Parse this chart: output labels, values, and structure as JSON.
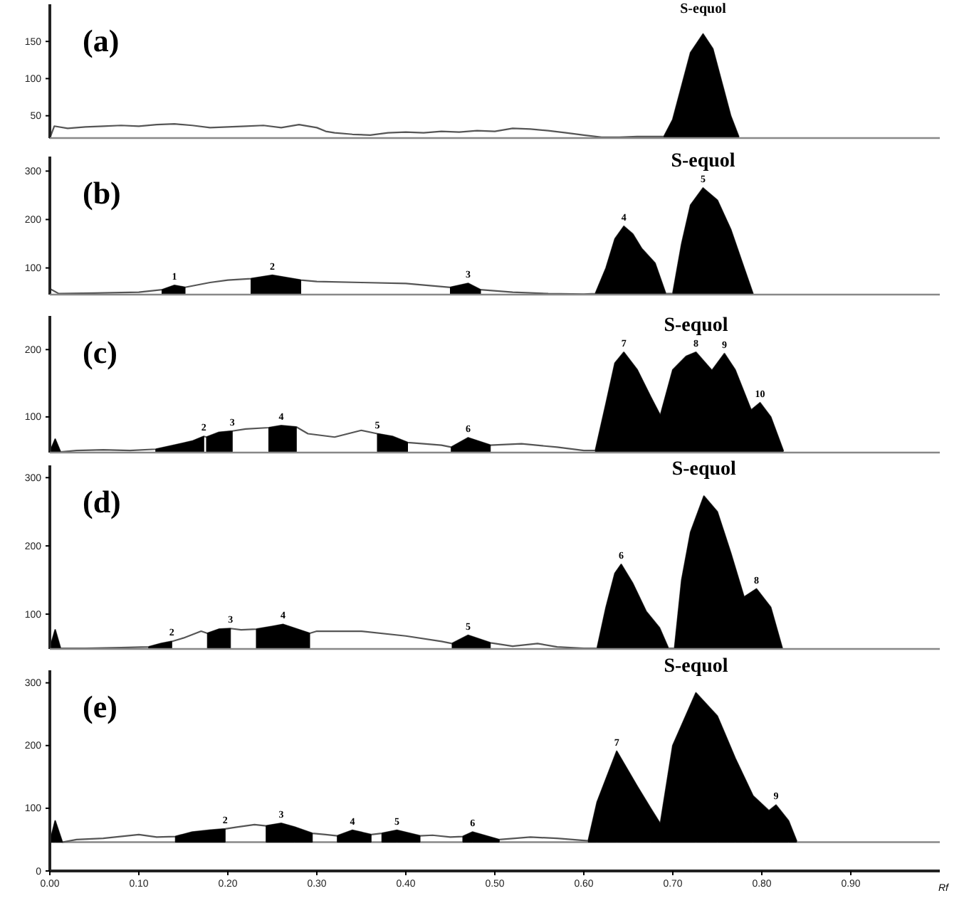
{
  "chart_data": [
    {
      "type": "line",
      "title": "(a)",
      "xlim": [
        0,
        1
      ],
      "ylim": [
        20,
        200
      ],
      "yticks": [
        50,
        100,
        150
      ],
      "tick_labels": "y",
      "series": [
        {
          "type": "line",
          "color": "#555555",
          "x": [
            0,
            0.005,
            0.02,
            0.04,
            0.06,
            0.08,
            0.1,
            0.12,
            0.14,
            0.16,
            0.18,
            0.2,
            0.22,
            0.24,
            0.26,
            0.28,
            0.3,
            0.31,
            0.32,
            0.34,
            0.36,
            0.38,
            0.4,
            0.42,
            0.44,
            0.46,
            0.48,
            0.5,
            0.52,
            0.54,
            0.56,
            0.58,
            0.6,
            0.62,
            0.64,
            0.66,
            0.69,
            0.7,
            0.71,
            0.72,
            0.734,
            0.745,
            0.755,
            0.765,
            0.774
          ],
          "values": [
            20,
            36,
            33,
            35,
            36,
            37,
            36,
            38,
            39,
            37,
            34,
            35,
            36,
            37,
            34,
            38,
            34,
            29,
            27,
            25,
            24,
            27,
            28,
            27,
            29,
            28,
            30,
            29,
            33,
            32,
            30,
            27,
            24,
            21,
            21,
            22,
            22,
            45,
            90,
            135,
            160,
            140,
            95,
            50,
            22
          ]
        },
        {
          "type": "area",
          "color": "#000000",
          "x": [
            0.69,
            0.7,
            0.71,
            0.72,
            0.734,
            0.745,
            0.755,
            0.765,
            0.774
          ],
          "values": [
            22,
            45,
            90,
            135,
            160,
            140,
            95,
            50,
            22
          ]
        }
      ],
      "annotations": [
        {
          "text": "S-equol",
          "x": 0.734,
          "y": 160
        }
      ]
    },
    {
      "type": "line",
      "title": "(b)",
      "xlim": [
        0,
        1
      ],
      "ylim": [
        45,
        330
      ],
      "yticks": [
        100,
        200,
        300
      ],
      "tick_labels": "y",
      "series": [
        {
          "type": "line",
          "color": "#555555",
          "x": [
            0,
            0.01,
            0.05,
            0.1,
            0.126,
            0.14,
            0.152,
            0.18,
            0.2,
            0.226,
            0.25,
            0.282,
            0.3,
            0.35,
            0.4,
            0.45,
            0.47,
            0.484,
            0.52,
            0.56,
            0.6,
            0.613,
            0.625,
            0.635,
            0.645,
            0.655,
            0.665,
            0.68,
            0.692,
            0.7,
            0.71,
            0.72,
            0.734,
            0.75,
            0.765,
            0.78,
            0.79
          ],
          "values": [
            57,
            47,
            48,
            50,
            55,
            64,
            60,
            70,
            75,
            78,
            85,
            75,
            72,
            70,
            68,
            60,
            68,
            55,
            50,
            47,
            46,
            47,
            100,
            160,
            186,
            170,
            140,
            110,
            47,
            47,
            150,
            230,
            265,
            240,
            180,
            100,
            47
          ]
        },
        {
          "type": "area",
          "color": "#000000",
          "x": [
            0.126,
            0.14,
            0.152
          ],
          "values": [
            55,
            64,
            60
          ]
        },
        {
          "type": "area",
          "color": "#000000",
          "x": [
            0.226,
            0.25,
            0.282
          ],
          "values": [
            78,
            85,
            75
          ]
        },
        {
          "type": "area",
          "color": "#000000",
          "x": [
            0.45,
            0.47,
            0.484
          ],
          "values": [
            60,
            68,
            55
          ]
        },
        {
          "type": "area",
          "color": "#000000",
          "x": [
            0.613,
            0.625,
            0.635,
            0.645,
            0.655,
            0.665,
            0.68,
            0.692
          ],
          "values": [
            47,
            100,
            160,
            186,
            170,
            140,
            110,
            47
          ]
        },
        {
          "type": "area",
          "color": "#000000",
          "x": [
            0.7,
            0.71,
            0.72,
            0.734,
            0.75,
            0.765,
            0.78,
            0.79
          ],
          "values": [
            47,
            150,
            230,
            265,
            240,
            180,
            100,
            47
          ]
        }
      ],
      "annotations": [
        {
          "text": "1",
          "x": 0.14,
          "y": 64
        },
        {
          "text": "2",
          "x": 0.25,
          "y": 85
        },
        {
          "text": "3",
          "x": 0.47,
          "y": 68
        },
        {
          "text": "4",
          "x": 0.645,
          "y": 186
        },
        {
          "text": "5",
          "x": 0.734,
          "y": 265
        },
        {
          "text": "S-equol",
          "x": 0.734,
          "y": 265
        }
      ]
    },
    {
      "type": "line",
      "title": "(c)",
      "xlim": [
        0,
        1
      ],
      "ylim": [
        47,
        250
      ],
      "yticks": [
        100,
        200
      ],
      "tick_labels": "y",
      "series": [
        {
          "type": "line",
          "color": "#555555",
          "x": [
            0,
            0.006,
            0.012,
            0.03,
            0.06,
            0.09,
            0.119,
            0.14,
            0.16,
            0.173,
            0.176,
            0.19,
            0.205,
            0.22,
            0.246,
            0.26,
            0.277,
            0.29,
            0.32,
            0.35,
            0.368,
            0.385,
            0.402,
            0.42,
            0.44,
            0.451,
            0.47,
            0.495,
            0.53,
            0.57,
            0.6,
            0.613,
            0.625,
            0.635,
            0.645,
            0.66,
            0.675,
            0.686,
            0.7,
            0.715,
            0.726,
            0.744,
            0.758,
            0.77,
            0.788,
            0.798,
            0.81,
            0.824
          ],
          "values": [
            48,
            67,
            48,
            50,
            51,
            50,
            52,
            58,
            64,
            71,
            70,
            77,
            79,
            82,
            84,
            87,
            85,
            75,
            70,
            80,
            75,
            71,
            62,
            60,
            58,
            55,
            69,
            58,
            60,
            55,
            50,
            50,
            120,
            180,
            196,
            170,
            130,
            102,
            170,
            190,
            196,
            169,
            194,
            170,
            110,
            121,
            100,
            50
          ]
        },
        {
          "type": "area",
          "color": "#000000",
          "x": [
            0,
            0.006,
            0.012
          ],
          "values": [
            48,
            67,
            48
          ]
        },
        {
          "type": "area",
          "color": "#000000",
          "x": [
            0.119,
            0.14,
            0.16,
            0.173
          ],
          "values": [
            52,
            58,
            64,
            71
          ]
        },
        {
          "type": "area",
          "color": "#000000",
          "x": [
            0.176,
            0.19,
            0.205
          ],
          "values": [
            70,
            77,
            79
          ]
        },
        {
          "type": "area",
          "color": "#000000",
          "x": [
            0.246,
            0.26,
            0.277
          ],
          "values": [
            84,
            87,
            85
          ]
        },
        {
          "type": "area",
          "color": "#000000",
          "x": [
            0.368,
            0.385,
            0.402
          ],
          "values": [
            75,
            71,
            62
          ]
        },
        {
          "type": "area",
          "color": "#000000",
          "x": [
            0.451,
            0.47,
            0.495
          ],
          "values": [
            55,
            69,
            58
          ]
        },
        {
          "type": "area",
          "color": "#000000",
          "x": [
            0.613,
            0.625,
            0.635,
            0.645,
            0.66,
            0.675,
            0.686
          ],
          "values": [
            50,
            120,
            180,
            196,
            170,
            130,
            102
          ]
        },
        {
          "type": "area",
          "color": "#000000",
          "x": [
            0.686,
            0.7,
            0.715,
            0.726,
            0.744
          ],
          "values": [
            102,
            170,
            190,
            196,
            169
          ]
        },
        {
          "type": "area",
          "color": "#000000",
          "x": [
            0.744,
            0.758,
            0.77,
            0.788
          ],
          "values": [
            169,
            194,
            170,
            110
          ]
        },
        {
          "type": "area",
          "color": "#000000",
          "x": [
            0.788,
            0.798,
            0.81,
            0.824
          ],
          "values": [
            110,
            121,
            100,
            50
          ]
        }
      ],
      "annotations": [
        {
          "text": "2",
          "x": 0.173,
          "y": 71
        },
        {
          "text": "3",
          "x": 0.205,
          "y": 79
        },
        {
          "text": "4",
          "x": 0.26,
          "y": 87
        },
        {
          "text": "5",
          "x": 0.368,
          "y": 75
        },
        {
          "text": "6",
          "x": 0.47,
          "y": 69
        },
        {
          "text": "7",
          "x": 0.645,
          "y": 196
        },
        {
          "text": "8",
          "x": 0.726,
          "y": 196
        },
        {
          "text": "9",
          "x": 0.758,
          "y": 194
        },
        {
          "text": "10",
          "x": 0.798,
          "y": 121
        },
        {
          "text": "S-equol",
          "x": 0.726,
          "y": 196
        }
      ]
    },
    {
      "type": "line",
      "title": "(d)",
      "xlim": [
        0,
        1
      ],
      "ylim": [
        49,
        318
      ],
      "yticks": [
        100,
        200,
        300
      ],
      "tick_labels": "y",
      "series": [
        {
          "type": "line",
          "color": "#555555",
          "x": [
            0,
            0.006,
            0.012,
            0.04,
            0.08,
            0.111,
            0.125,
            0.137,
            0.15,
            0.17,
            0.177,
            0.19,
            0.203,
            0.215,
            0.232,
            0.25,
            0.262,
            0.292,
            0.3,
            0.35,
            0.4,
            0.44,
            0.452,
            0.47,
            0.495,
            0.52,
            0.548,
            0.57,
            0.6,
            0.615,
            0.625,
            0.635,
            0.642,
            0.655,
            0.67,
            0.685,
            0.695,
            0.702,
            0.71,
            0.72,
            0.735,
            0.75,
            0.765,
            0.78,
            0.794,
            0.81,
            0.823
          ],
          "values": [
            50,
            77,
            50,
            50,
            51,
            52,
            57,
            60,
            65,
            75,
            72,
            78,
            79,
            77,
            78,
            82,
            85,
            72,
            75,
            75,
            68,
            60,
            57,
            69,
            58,
            53,
            57,
            52,
            50,
            50,
            110,
            160,
            173,
            145,
            104,
            80,
            50,
            50,
            150,
            220,
            273,
            250,
            190,
            125,
            137,
            110,
            50
          ]
        },
        {
          "type": "area",
          "color": "#000000",
          "x": [
            0,
            0.006,
            0.012
          ],
          "values": [
            50,
            77,
            50
          ]
        },
        {
          "type": "area",
          "color": "#000000",
          "x": [
            0.111,
            0.125,
            0.137
          ],
          "values": [
            52,
            57,
            60
          ]
        },
        {
          "type": "area",
          "color": "#000000",
          "x": [
            0.177,
            0.19,
            0.203
          ],
          "values": [
            72,
            78,
            79
          ]
        },
        {
          "type": "area",
          "color": "#000000",
          "x": [
            0.232,
            0.25,
            0.262,
            0.292
          ],
          "values": [
            78,
            82,
            85,
            72
          ]
        },
        {
          "type": "area",
          "color": "#000000",
          "x": [
            0.452,
            0.47,
            0.495
          ],
          "values": [
            57,
            69,
            58
          ]
        },
        {
          "type": "area",
          "color": "#000000",
          "x": [
            0.615,
            0.625,
            0.635,
            0.642,
            0.655,
            0.67,
            0.685,
            0.695
          ],
          "values": [
            50,
            110,
            160,
            173,
            145,
            104,
            80,
            50
          ]
        },
        {
          "type": "area",
          "color": "#000000",
          "x": [
            0.702,
            0.71,
            0.72,
            0.735,
            0.75,
            0.765,
            0.78
          ],
          "values": [
            50,
            150,
            220,
            273,
            250,
            190,
            125
          ]
        },
        {
          "type": "area",
          "color": "#000000",
          "x": [
            0.78,
            0.794,
            0.81,
            0.823
          ],
          "values": [
            125,
            137,
            110,
            50
          ]
        }
      ],
      "annotations": [
        {
          "text": "2",
          "x": 0.137,
          "y": 60
        },
        {
          "text": "3",
          "x": 0.203,
          "y": 79
        },
        {
          "text": "4",
          "x": 0.262,
          "y": 85
        },
        {
          "text": "5",
          "x": 0.47,
          "y": 69
        },
        {
          "text": "6",
          "x": 0.642,
          "y": 173
        },
        {
          "text": "8",
          "x": 0.794,
          "y": 137
        },
        {
          "text": "S-equol",
          "x": 0.735,
          "y": 273
        }
      ]
    },
    {
      "type": "line",
      "title": "(e)",
      "xlim": [
        0,
        1
      ],
      "xticks": [
        {
          "value": 0,
          "label": "0.00"
        },
        {
          "value": 0.1,
          "label": "0.10"
        },
        {
          "value": 0.2,
          "label": "0.20"
        },
        {
          "value": 0.3,
          "label": "0.30"
        },
        {
          "value": 0.4,
          "label": "0.40"
        },
        {
          "value": 0.5,
          "label": "0.50"
        },
        {
          "value": 0.6,
          "label": "0.60"
        },
        {
          "value": 0.7,
          "label": "0.70"
        },
        {
          "value": 0.8,
          "label": "0.80"
        },
        {
          "value": 0.9,
          "label": "0.90"
        }
      ],
      "xlabel": "Rf",
      "ylim": [
        0,
        320
      ],
      "yticks": [
        0,
        100,
        200,
        300
      ],
      "ref_lines": [
        {
          "axis": "y",
          "value": 46
        }
      ],
      "series": [
        {
          "type": "line",
          "color": "#555555",
          "x": [
            0,
            0.006,
            0.014,
            0.03,
            0.06,
            0.1,
            0.12,
            0.141,
            0.16,
            0.18,
            0.197,
            0.21,
            0.23,
            0.243,
            0.26,
            0.275,
            0.295,
            0.31,
            0.323,
            0.34,
            0.361,
            0.373,
            0.39,
            0.416,
            0.43,
            0.45,
            0.464,
            0.475,
            0.505,
            0.54,
            0.57,
            0.605,
            0.615,
            0.637,
            0.66,
            0.675,
            0.686,
            0.7,
            0.726,
            0.75,
            0.77,
            0.79,
            0.808,
            0.816,
            0.83,
            0.839
          ],
          "values": [
            46,
            80,
            46,
            50,
            52,
            58,
            54,
            55,
            62,
            65,
            67,
            70,
            74,
            72,
            76,
            70,
            60,
            58,
            56,
            65,
            58,
            60,
            65,
            56,
            57,
            54,
            55,
            62,
            50,
            54,
            52,
            48,
            110,
            191,
            135,
            100,
            75,
            200,
            284,
            247,
            180,
            120,
            96,
            105,
            80,
            48
          ]
        },
        {
          "type": "area",
          "color": "#000000",
          "x": [
            0,
            0.006,
            0.014
          ],
          "values": [
            46,
            80,
            46
          ]
        },
        {
          "type": "area",
          "color": "#000000",
          "x": [
            0.141,
            0.16,
            0.18,
            0.197
          ],
          "values": [
            55,
            62,
            65,
            67
          ]
        },
        {
          "type": "area",
          "color": "#000000",
          "x": [
            0.243,
            0.26,
            0.275,
            0.295
          ],
          "values": [
            72,
            76,
            70,
            60
          ]
        },
        {
          "type": "area",
          "color": "#000000",
          "x": [
            0.323,
            0.34,
            0.361
          ],
          "values": [
            56,
            65,
            58
          ]
        },
        {
          "type": "area",
          "color": "#000000",
          "x": [
            0.373,
            0.39,
            0.416
          ],
          "values": [
            60,
            65,
            56
          ]
        },
        {
          "type": "area",
          "color": "#000000",
          "x": [
            0.464,
            0.475,
            0.505
          ],
          "values": [
            55,
            62,
            50
          ]
        },
        {
          "type": "area",
          "color": "#000000",
          "x": [
            0.605,
            0.615,
            0.637,
            0.66,
            0.675,
            0.686
          ],
          "values": [
            48,
            110,
            191,
            135,
            100,
            75
          ]
        },
        {
          "type": "area",
          "color": "#000000",
          "x": [
            0.686,
            0.7,
            0.726,
            0.75,
            0.77,
            0.79,
            0.808
          ],
          "values": [
            75,
            200,
            284,
            247,
            180,
            120,
            96
          ]
        },
        {
          "type": "area",
          "color": "#000000",
          "x": [
            0.808,
            0.816,
            0.83,
            0.839
          ],
          "values": [
            96,
            105,
            80,
            48
          ]
        }
      ],
      "annotations": [
        {
          "text": "2",
          "x": 0.197,
          "y": 67
        },
        {
          "text": "3",
          "x": 0.26,
          "y": 76
        },
        {
          "text": "4",
          "x": 0.34,
          "y": 65
        },
        {
          "text": "5",
          "x": 0.39,
          "y": 65
        },
        {
          "text": "6",
          "x": 0.475,
          "y": 62
        },
        {
          "text": "7",
          "x": 0.637,
          "y": 191
        },
        {
          "text": "9",
          "x": 0.816,
          "y": 105
        },
        {
          "text": "S-equol",
          "x": 0.726,
          "y": 284
        }
      ]
    }
  ]
}
